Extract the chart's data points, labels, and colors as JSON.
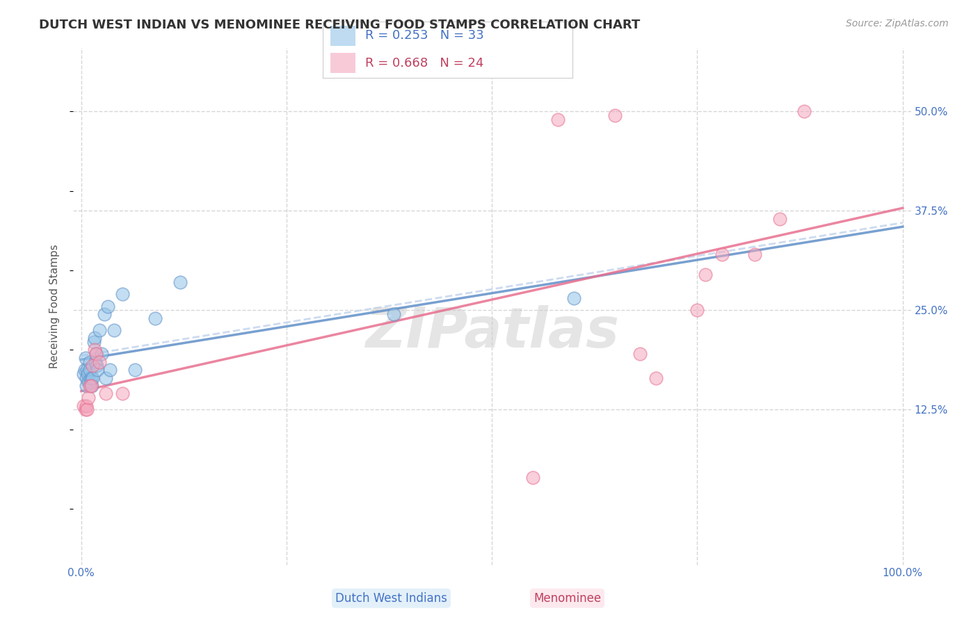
{
  "title": "DUTCH WEST INDIAN VS MENOMINEE RECEIVING FOOD STAMPS CORRELATION CHART",
  "source": "Source: ZipAtlas.com",
  "ylabel_label": "Receiving Food Stamps",
  "ytick_labels": [
    "12.5%",
    "25.0%",
    "37.5%",
    "50.0%"
  ],
  "ytick_values": [
    0.125,
    0.25,
    0.375,
    0.5
  ],
  "xlim": [
    -0.01,
    1.01
  ],
  "ylim": [
    -0.07,
    0.58
  ],
  "legend_entry1": "R = 0.253   N = 33",
  "legend_entry2": "R = 0.668   N = 24",
  "color_blue": "#93c4e8",
  "color_pink": "#f4a8bf",
  "trendline_blue_solid": "#6090c8",
  "trendline_pink_solid": "#e87090",
  "trendline_blue_dash": "#c8d8ee",
  "label_blue": "Dutch West Indians",
  "label_pink": "Menominee",
  "watermark": "ZIPatlas",
  "background_color": "#ffffff",
  "grid_color": "#cccccc",
  "blue_scatter_x": [
    0.003,
    0.004,
    0.005,
    0.006,
    0.006,
    0.007,
    0.008,
    0.009,
    0.01,
    0.01,
    0.011,
    0.012,
    0.013,
    0.014,
    0.015,
    0.016,
    0.017,
    0.018,
    0.019,
    0.02,
    0.022,
    0.025,
    0.028,
    0.03,
    0.032,
    0.035,
    0.04,
    0.05,
    0.065,
    0.09,
    0.12,
    0.38,
    0.6
  ],
  "blue_scatter_y": [
    0.17,
    0.175,
    0.19,
    0.165,
    0.155,
    0.175,
    0.17,
    0.16,
    0.185,
    0.175,
    0.16,
    0.165,
    0.155,
    0.165,
    0.21,
    0.215,
    0.185,
    0.195,
    0.18,
    0.175,
    0.225,
    0.195,
    0.245,
    0.165,
    0.255,
    0.175,
    0.225,
    0.27,
    0.175,
    0.24,
    0.285,
    0.245,
    0.265
  ],
  "pink_scatter_x": [
    0.003,
    0.005,
    0.006,
    0.007,
    0.009,
    0.01,
    0.012,
    0.014,
    0.016,
    0.018,
    0.022,
    0.03,
    0.05,
    0.55,
    0.58,
    0.65,
    0.68,
    0.7,
    0.75,
    0.76,
    0.78,
    0.82,
    0.85,
    0.88
  ],
  "pink_scatter_y": [
    0.13,
    0.125,
    0.13,
    0.125,
    0.14,
    0.155,
    0.155,
    0.18,
    0.2,
    0.195,
    0.185,
    0.145,
    0.145,
    0.04,
    0.49,
    0.495,
    0.195,
    0.165,
    0.25,
    0.295,
    0.32,
    0.32,
    0.365,
    0.5
  ],
  "title_fontsize": 13,
  "axis_label_fontsize": 11,
  "tick_fontsize": 11,
  "legend_fontsize": 13,
  "source_fontsize": 10
}
